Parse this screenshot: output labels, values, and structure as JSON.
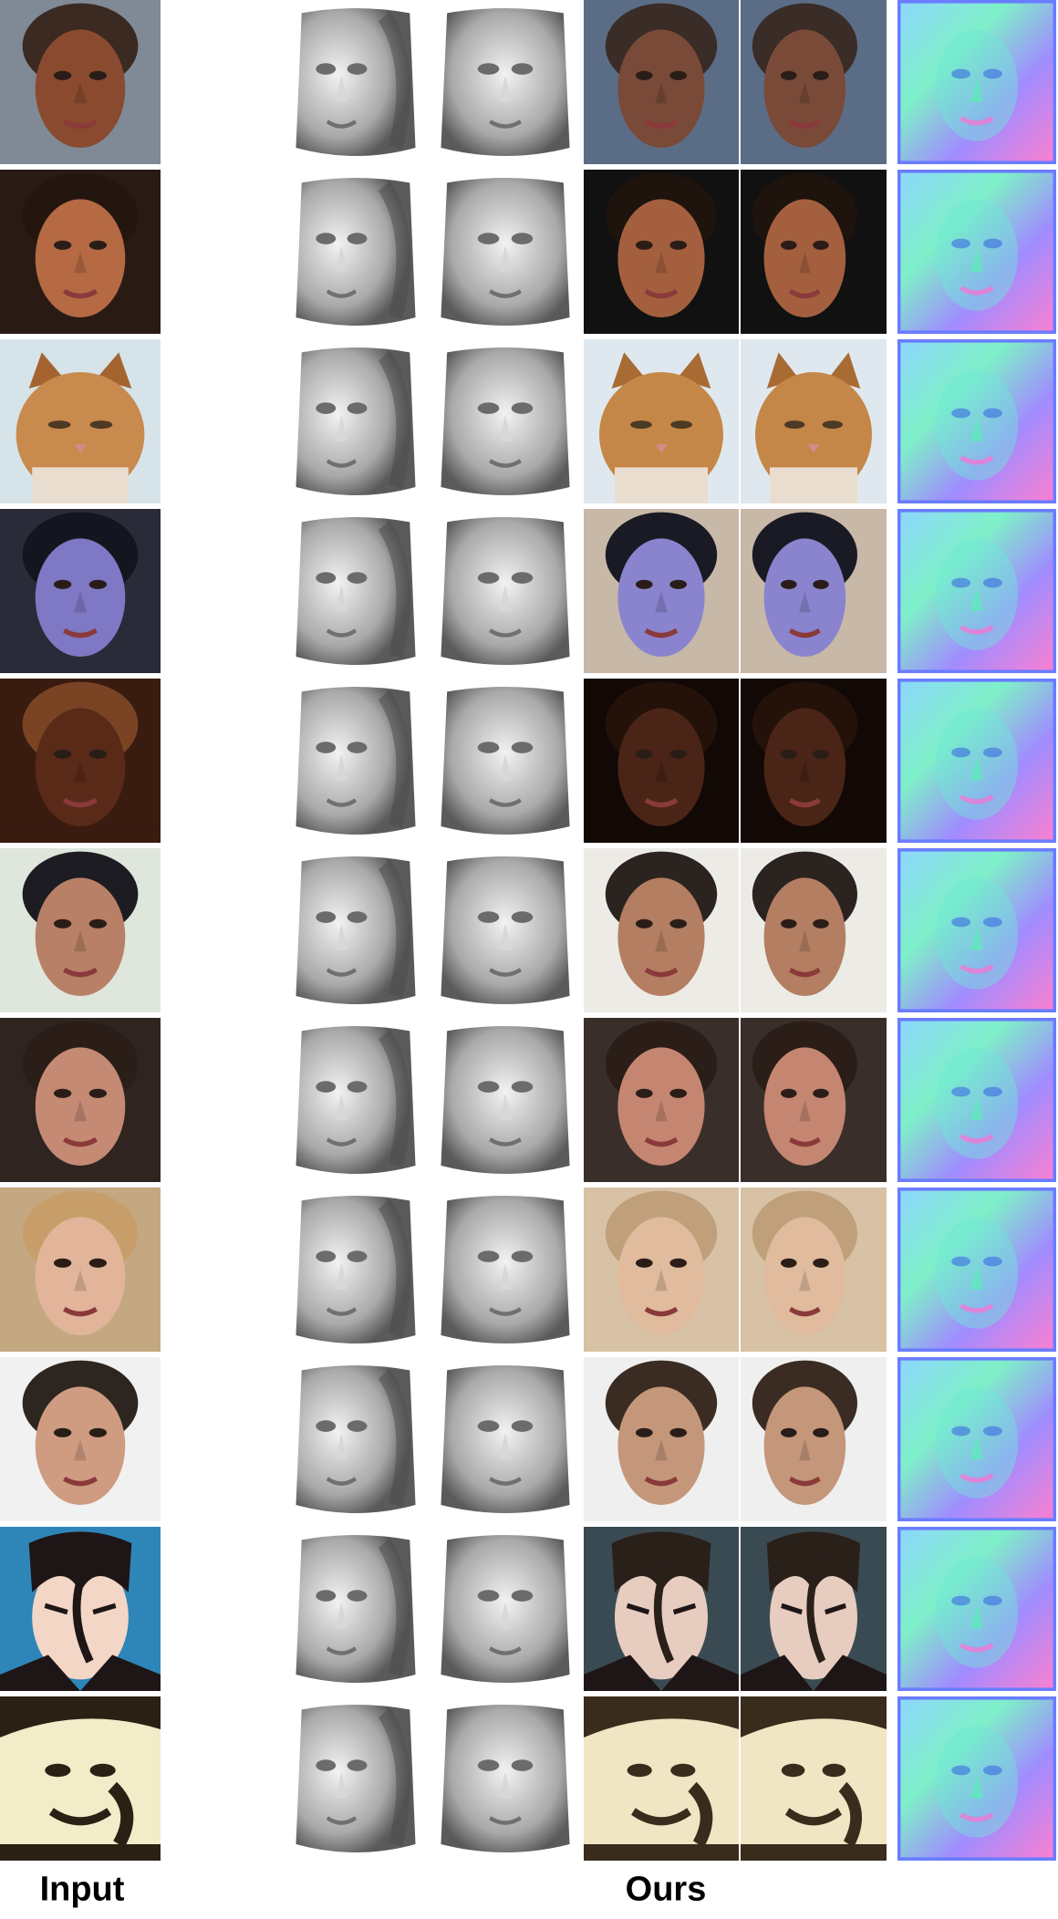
{
  "columns": {
    "input_label": "Input",
    "ours_label": "Ours"
  },
  "rows": [
    {
      "subject": "face",
      "input_colors": {
        "bg": "#7f8a96",
        "skin": "#8a4a30",
        "hair": "#3b2a22"
      },
      "tex_colors": {
        "bg": "#5b6d86",
        "skin": "#7a4a38",
        "hair": "#3a2c26"
      }
    },
    {
      "subject": "face",
      "input_colors": {
        "bg": "#2a1a14",
        "skin": "#b56a44",
        "hair": "#24160f"
      },
      "tex_colors": {
        "bg": "#111111",
        "skin": "#a4603e",
        "hair": "#1e130d"
      }
    },
    {
      "subject": "cat",
      "input_colors": {
        "bg": "#d6e4ea",
        "skin": "#c98a4e",
        "hair": "#a5642f"
      },
      "tex_colors": {
        "bg": "#dfe8ee",
        "skin": "#c58747",
        "hair": "#a86b33"
      }
    },
    {
      "subject": "face",
      "input_colors": {
        "bg": "#2a2a38",
        "skin": "#7f78c4",
        "hair": "#151520"
      },
      "tex_colors": {
        "bg": "#c7b8a8",
        "skin": "#8a84cf",
        "hair": "#1a1a24"
      }
    },
    {
      "subject": "face",
      "input_colors": {
        "bg": "#3a1b10",
        "skin": "#5a2a18",
        "hair": "#7a4424"
      },
      "tex_colors": {
        "bg": "#120906",
        "skin": "#4a2416",
        "hair": "#24120a"
      }
    },
    {
      "subject": "face",
      "input_colors": {
        "bg": "#dfe6dc",
        "skin": "#b88066",
        "hair": "#1c1c22"
      },
      "tex_colors": {
        "bg": "#ecebe6",
        "skin": "#b47e62",
        "hair": "#2a2320"
      }
    },
    {
      "subject": "face",
      "input_colors": {
        "bg": "#2f2420",
        "skin": "#c48a74",
        "hair": "#2b1d18"
      },
      "tex_colors": {
        "bg": "#3a2e2a",
        "skin": "#c48670",
        "hair": "#2b1d18"
      }
    },
    {
      "subject": "face",
      "input_colors": {
        "bg": "#c4a882",
        "skin": "#e2b59a",
        "hair": "#c79e6a"
      },
      "tex_colors": {
        "bg": "#d7c2a6",
        "skin": "#e0bb9e",
        "hair": "#bfa07a"
      }
    },
    {
      "subject": "face",
      "input_colors": {
        "bg": "#f1f1f1",
        "skin": "#cf9c82",
        "hair": "#2d2620"
      },
      "tex_colors": {
        "bg": "#efefef",
        "skin": "#c4977b",
        "hair": "#3a2c22"
      }
    },
    {
      "subject": "anime",
      "input_colors": {
        "bg": "#2e86b8",
        "skin": "#f3d6c6",
        "hair": "#1e1616"
      },
      "tex_colors": {
        "bg": "#3a4a52",
        "skin": "#e6cdbf",
        "hair": "#2a201a"
      }
    },
    {
      "subject": "drawing",
      "input_colors": {
        "bg": "#2a2114",
        "skin": "#f3ecc8",
        "hair": "#2a2114"
      },
      "tex_colors": {
        "bg": "#3a2c1c",
        "skin": "#f0e6c4",
        "hair": "#3a2c1c"
      }
    }
  ]
}
